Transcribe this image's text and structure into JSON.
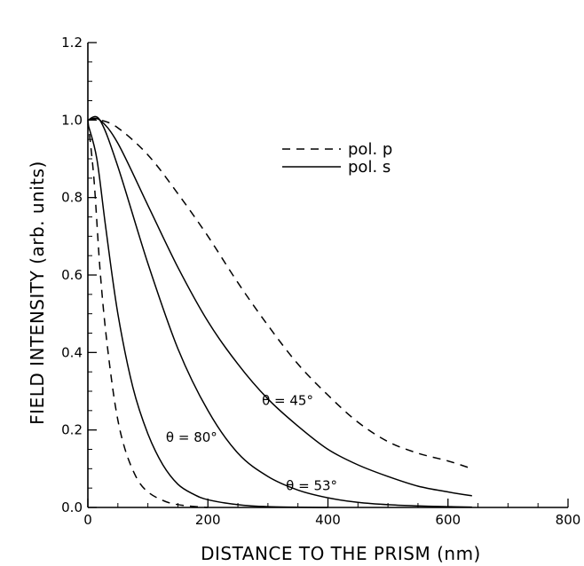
{
  "chart_data": {
    "type": "line",
    "xlabel": "DISTANCE TO THE PRISM (nm)",
    "ylabel": "FIELD INTENSITY (arb. units)",
    "xlim": [
      0,
      800
    ],
    "ylim": [
      0,
      1.2
    ],
    "xticks": [
      "0",
      "200",
      "400",
      "600",
      "800"
    ],
    "yticks": [
      "0.0",
      "0.2",
      "0.4",
      "0.6",
      "0.8",
      "1.0",
      "1.2"
    ],
    "grid": false,
    "legend": {
      "placement": "upper-center",
      "entries": [
        {
          "label": "pol. p",
          "style": "dashed"
        },
        {
          "label": "pol. s",
          "style": "solid"
        }
      ]
    },
    "series": [
      {
        "style": "dashed",
        "x": [
          0,
          20,
          50,
          100,
          150,
          200,
          250,
          300,
          350,
          400,
          450,
          500,
          550,
          600,
          640
        ],
        "y": [
          1.0,
          1.0,
          0.98,
          0.91,
          0.81,
          0.7,
          0.58,
          0.47,
          0.37,
          0.29,
          0.22,
          0.17,
          0.14,
          0.12,
          0.1
        ]
      },
      {
        "style": "solid",
        "x": [
          0,
          20,
          50,
          100,
          150,
          200,
          250,
          300,
          350,
          400,
          450,
          500,
          550,
          600,
          640
        ],
        "y": [
          1.0,
          1.0,
          0.94,
          0.78,
          0.62,
          0.48,
          0.37,
          0.28,
          0.21,
          0.15,
          0.11,
          0.08,
          0.055,
          0.04,
          0.03
        ]
      },
      {
        "style": "solid",
        "x": [
          0,
          20,
          50,
          100,
          150,
          200,
          250,
          300,
          350,
          400,
          450,
          500,
          550,
          600,
          640
        ],
        "y": [
          1.0,
          1.0,
          0.88,
          0.63,
          0.41,
          0.25,
          0.14,
          0.08,
          0.045,
          0.025,
          0.013,
          0.007,
          0.004,
          0.002,
          0.001
        ]
      },
      {
        "style": "solid",
        "x": [
          0,
          15,
          30,
          50,
          75,
          100,
          125,
          150,
          175,
          200,
          250,
          300,
          400
        ],
        "y": [
          0.99,
          0.9,
          0.72,
          0.5,
          0.31,
          0.19,
          0.11,
          0.06,
          0.035,
          0.02,
          0.007,
          0.002,
          0.0
        ]
      },
      {
        "style": "dashed",
        "x": [
          0,
          10,
          20,
          30,
          45,
          60,
          80,
          100,
          130,
          160,
          200
        ],
        "y": [
          1.0,
          0.85,
          0.62,
          0.45,
          0.27,
          0.16,
          0.08,
          0.04,
          0.015,
          0.005,
          0.0
        ]
      }
    ],
    "annotations": [
      {
        "text": "θ = 45°",
        "x": 290,
        "y": 0.265
      },
      {
        "text": "θ = 53°",
        "x": 330,
        "y": 0.045
      },
      {
        "text": "θ = 80°",
        "x": 130,
        "y": 0.17
      }
    ]
  }
}
